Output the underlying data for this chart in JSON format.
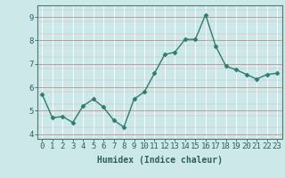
{
  "x": [
    0,
    1,
    2,
    3,
    4,
    5,
    6,
    7,
    8,
    9,
    10,
    11,
    12,
    13,
    14,
    15,
    16,
    17,
    18,
    19,
    20,
    21,
    22,
    23
  ],
  "y": [
    5.7,
    4.7,
    4.75,
    4.5,
    5.2,
    5.5,
    5.15,
    4.6,
    4.3,
    5.5,
    5.8,
    6.6,
    7.4,
    7.5,
    8.05,
    8.05,
    9.1,
    7.75,
    6.9,
    6.75,
    6.55,
    6.35,
    6.55,
    6.6
  ],
  "xlabel": "Humidex (Indice chaleur)",
  "ylim": [
    3.8,
    9.5
  ],
  "xlim": [
    -0.5,
    23.5
  ],
  "yticks": [
    4,
    5,
    6,
    7,
    8,
    9
  ],
  "xticks": [
    0,
    1,
    2,
    3,
    4,
    5,
    6,
    7,
    8,
    9,
    10,
    11,
    12,
    13,
    14,
    15,
    16,
    17,
    18,
    19,
    20,
    21,
    22,
    23
  ],
  "line_color": "#2e7d6e",
  "marker": "D",
  "marker_size": 2.5,
  "bg_color": "#cce8e8",
  "grid_color": "#ffffff",
  "grid_red_color": "#cc8888",
  "axis_color": "#4a7a7a",
  "label_color": "#2e5f5f",
  "xlabel_fontsize": 7,
  "tick_fontsize": 6.5
}
